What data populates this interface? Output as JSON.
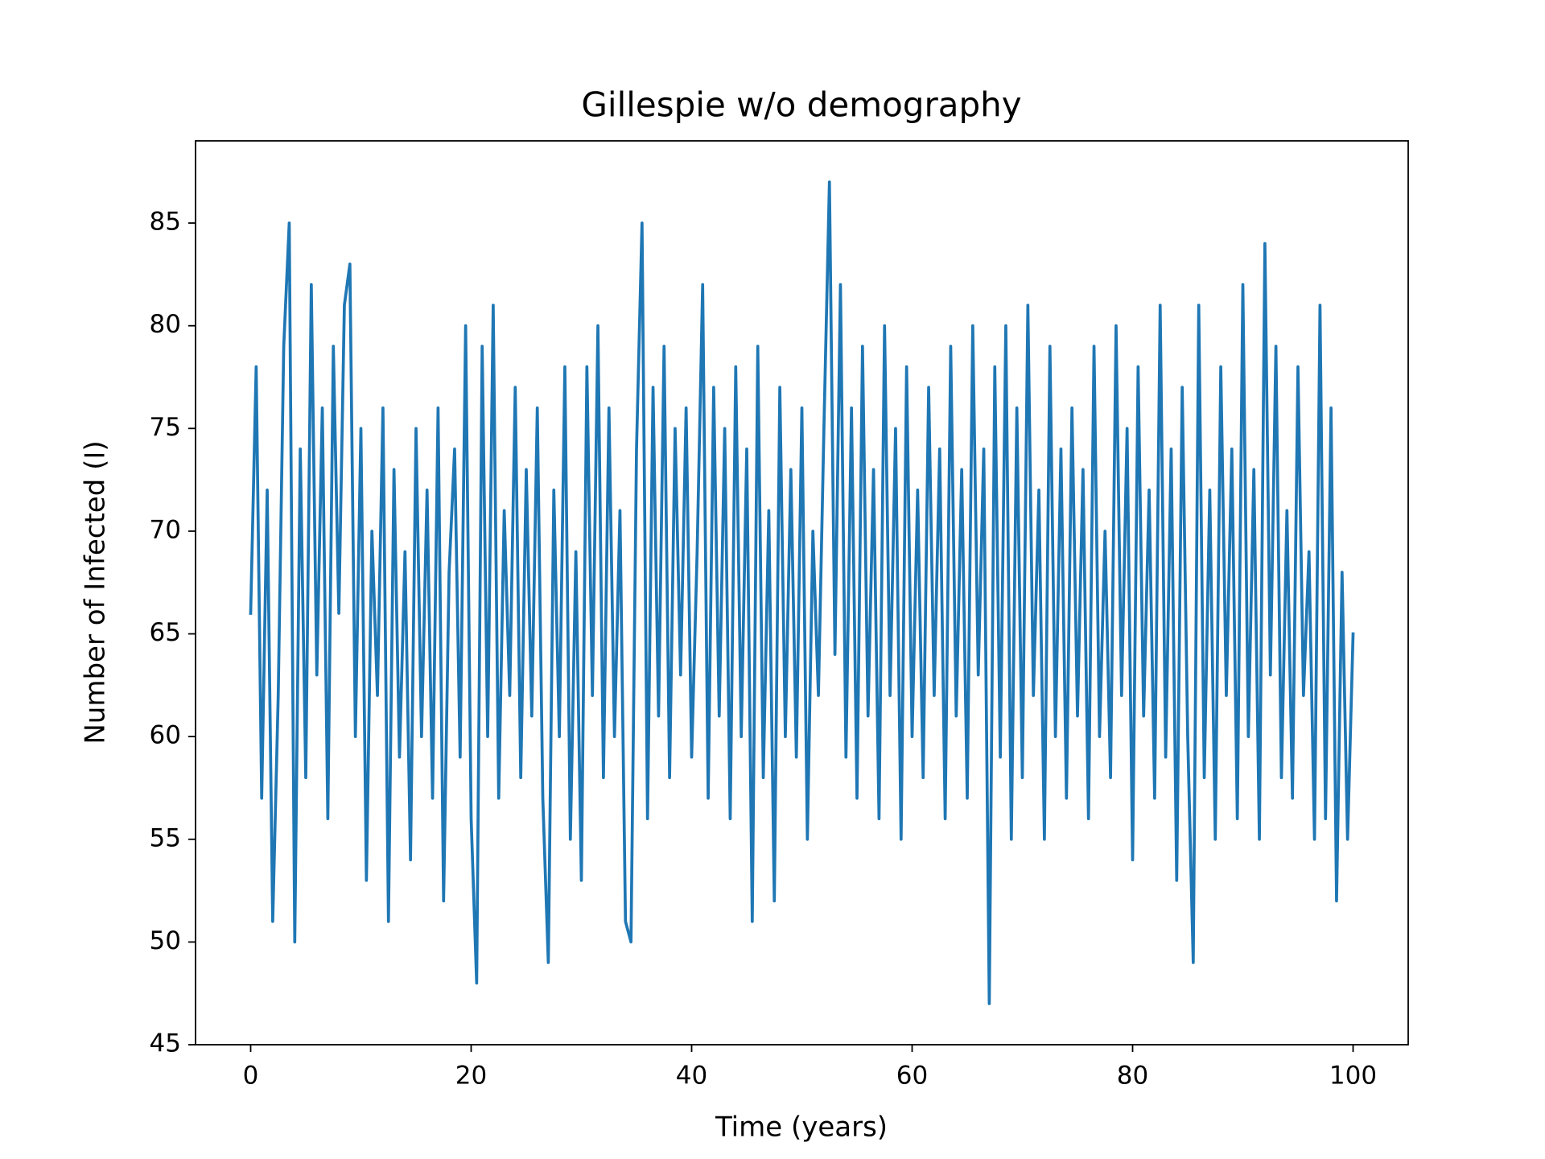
{
  "chart_data": {
    "type": "line",
    "title": "Gillespie w/o demography",
    "x_label": "Time (years)",
    "y_label": "Number of Infected (I)",
    "x": [
      0,
      0.5,
      1,
      1.5,
      2,
      2.5,
      3,
      3.5,
      4,
      4.5,
      5,
      5.5,
      6,
      6.5,
      7,
      7.5,
      8,
      8.5,
      9,
      9.5,
      10,
      10.5,
      11,
      11.5,
      12,
      12.5,
      13,
      13.5,
      14,
      14.5,
      15,
      15.5,
      16,
      16.5,
      17,
      17.5,
      18,
      18.5,
      19,
      19.5,
      20,
      20.5,
      21,
      21.5,
      22,
      22.5,
      23,
      23.5,
      24,
      24.5,
      25,
      25.5,
      26,
      26.5,
      27,
      27.5,
      28,
      28.5,
      29,
      29.5,
      30,
      30.5,
      31,
      31.5,
      32,
      32.5,
      33,
      33.5,
      34,
      34.5,
      35,
      35.5,
      36,
      36.5,
      37,
      37.5,
      38,
      38.5,
      39,
      39.5,
      40,
      40.5,
      41,
      41.5,
      42,
      42.5,
      43,
      43.5,
      44,
      44.5,
      45,
      45.5,
      46,
      46.5,
      47,
      47.5,
      48,
      48.5,
      49,
      49.5,
      50,
      50.5,
      51,
      51.5,
      52,
      52.5,
      53,
      53.5,
      54,
      54.5,
      55,
      55.5,
      56,
      56.5,
      57,
      57.5,
      58,
      58.5,
      59,
      59.5,
      60,
      60.5,
      61,
      61.5,
      62,
      62.5,
      63,
      63.5,
      64,
      64.5,
      65,
      65.5,
      66,
      66.5,
      67,
      67.5,
      68,
      68.5,
      69,
      69.5,
      70,
      70.5,
      71,
      71.5,
      72,
      72.5,
      73,
      73.5,
      74,
      74.5,
      75,
      75.5,
      76,
      76.5,
      77,
      77.5,
      78,
      78.5,
      79,
      79.5,
      80,
      80.5,
      81,
      81.5,
      82,
      82.5,
      83,
      83.5,
      84,
      84.5,
      85,
      85.5,
      86,
      86.5,
      87,
      87.5,
      88,
      88.5,
      89,
      89.5,
      90,
      90.5,
      91,
      91.5,
      92,
      92.5,
      93,
      93.5,
      94,
      94.5,
      95,
      95.5,
      96,
      96.5,
      97,
      97.5,
      98,
      98.5,
      99,
      99.5,
      100
    ],
    "series": [
      {
        "color": "#1f77b4",
        "values": [
          66,
          78,
          57,
          72,
          51,
          62,
          79,
          85,
          50,
          74,
          58,
          82,
          63,
          76,
          56,
          79,
          66,
          81,
          83,
          60,
          75,
          53,
          70,
          62,
          76,
          51,
          73,
          59,
          69,
          54,
          75,
          60,
          72,
          57,
          76,
          52,
          68,
          74,
          59,
          80,
          56,
          48,
          79,
          60,
          81,
          57,
          71,
          62,
          77,
          58,
          73,
          61,
          76,
          57,
          49,
          72,
          60,
          78,
          55,
          69,
          53,
          78,
          62,
          80,
          58,
          76,
          60,
          71,
          51,
          50,
          74,
          85,
          56,
          77,
          61,
          79,
          58,
          75,
          63,
          76,
          59,
          69,
          82,
          57,
          77,
          61,
          75,
          56,
          78,
          60,
          74,
          51,
          79,
          58,
          71,
          52,
          77,
          60,
          73,
          59,
          76,
          55,
          70,
          62,
          75,
          87,
          64,
          82,
          59,
          76,
          57,
          79,
          61,
          73,
          56,
          80,
          62,
          75,
          55,
          78,
          60,
          72,
          58,
          77,
          62,
          74,
          56,
          79,
          61,
          73,
          57,
          80,
          63,
          74,
          47,
          78,
          59,
          80,
          55,
          76,
          58,
          81,
          62,
          72,
          55,
          79,
          60,
          74,
          57,
          76,
          61,
          73,
          56,
          79,
          60,
          70,
          58,
          80,
          62,
          75,
          54,
          78,
          61,
          72,
          57,
          81,
          59,
          74,
          53,
          77,
          60,
          49,
          81,
          58,
          72,
          55,
          78,
          62,
          74,
          56,
          82,
          60,
          73,
          55,
          84,
          63,
          79,
          58,
          71,
          57,
          78,
          62,
          69,
          55,
          81,
          56,
          76,
          52,
          68,
          55,
          65
        ]
      }
    ],
    "xlim": [
      -5,
      105
    ],
    "ylim": [
      45,
      89
    ],
    "xticks": [
      0,
      20,
      40,
      60,
      80,
      100
    ],
    "yticks": [
      45,
      50,
      55,
      60,
      65,
      70,
      75,
      80,
      85
    ]
  }
}
